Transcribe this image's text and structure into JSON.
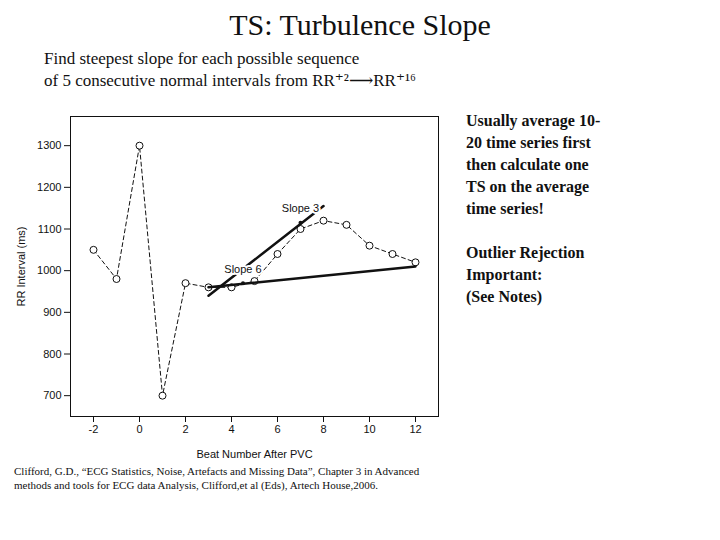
{
  "chart_data": {
    "type": "line",
    "title": "TS: Turbulence Slope",
    "subtitle": [
      "Find steepest slope for each possible sequence",
      "of 5 consecutive normal intervals from RR⁺²⟶RR⁺¹⁶"
    ],
    "series": [
      {
        "x": [
          -2,
          -1,
          0,
          1,
          2,
          3,
          4,
          5,
          6,
          7,
          8,
          9,
          10,
          11,
          12
        ],
        "values": [
          1050,
          980,
          1300,
          700,
          970,
          960,
          960,
          975,
          1040,
          1100,
          1120,
          1110,
          1060,
          1040,
          1020
        ],
        "line_style": "dashed",
        "marker": "circle"
      },
      {
        "x": [
          3,
          8
        ],
        "values": [
          940,
          1155
        ],
        "line_style": "solid"
      },
      {
        "x": [
          3,
          12
        ],
        "values": [
          960,
          1010
        ],
        "line_style": "solid"
      }
    ],
    "annotations": [
      {
        "text": "Slope 3",
        "x": 7,
        "y": 1115
      },
      {
        "text": "Slope 6",
        "x": 4.5,
        "y": 970
      }
    ],
    "side_notes": [
      [
        "Usually average 10-",
        "20 time series first",
        "then calculate one",
        "TS on the average",
        "time series!"
      ],
      [
        "Outlier Rejection",
        "Important:",
        "(See Notes)"
      ]
    ],
    "caption": [
      "Clifford, G.D., “ECG Statistics, Noise, Artefacts and Missing Data”, Chapter 3 in Advanced",
      "methods and tools for ECG data Analysis, Clifford,et al (Eds), Artech House,2006."
    ],
    "xlabel": "Beat Number After PVC",
    "ylabel": "RR Interval (ms)",
    "xlim": [
      -3,
      13
    ],
    "ylim": [
      650,
      1370
    ],
    "xticks": [
      -2,
      0,
      2,
      4,
      6,
      8,
      10,
      12
    ],
    "yticks": [
      700,
      800,
      900,
      1000,
      1100,
      1200,
      1300
    ],
    "grid": false
  }
}
